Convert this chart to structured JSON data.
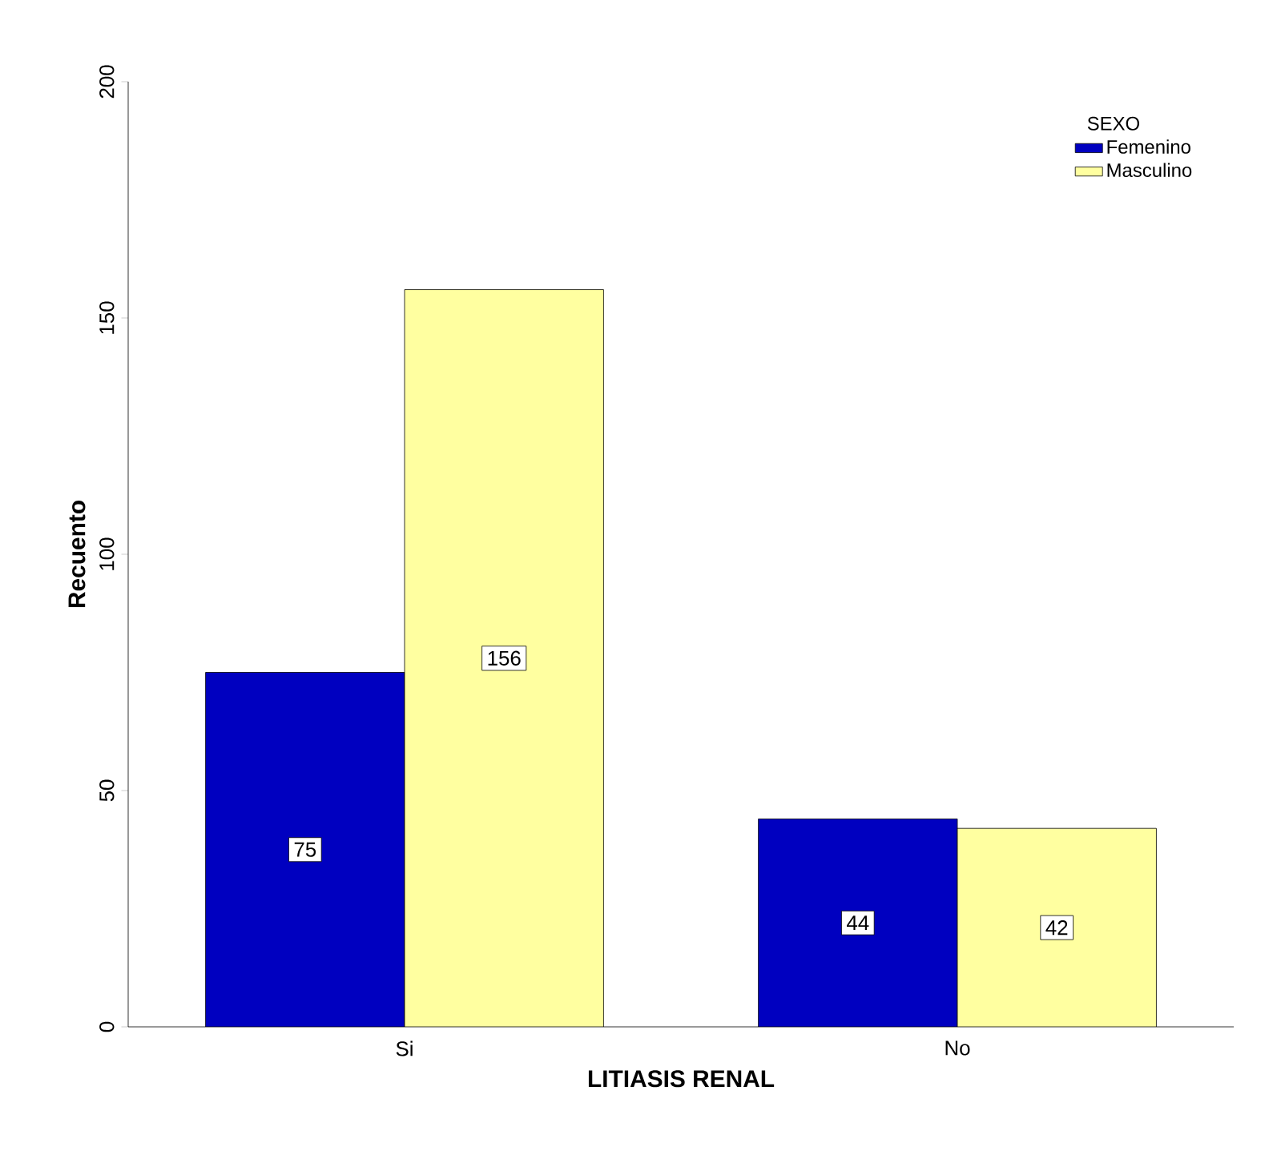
{
  "chart_data": {
    "type": "bar",
    "xlabel": "LITIASIS RENAL",
    "ylabel": "Recuento",
    "legend_title": "SEXO",
    "categories": [
      "Si",
      "No"
    ],
    "series": [
      {
        "name": "Femenino",
        "color": "#0000c0",
        "values": [
          75,
          44
        ]
      },
      {
        "name": "Masculino",
        "color": "#ffffa0",
        "values": [
          156,
          42
        ]
      }
    ],
    "ylim": [
      0,
      200
    ],
    "yticks": [
      0,
      50,
      100,
      150,
      200
    ],
    "legend": "top right",
    "data_labels": true
  }
}
